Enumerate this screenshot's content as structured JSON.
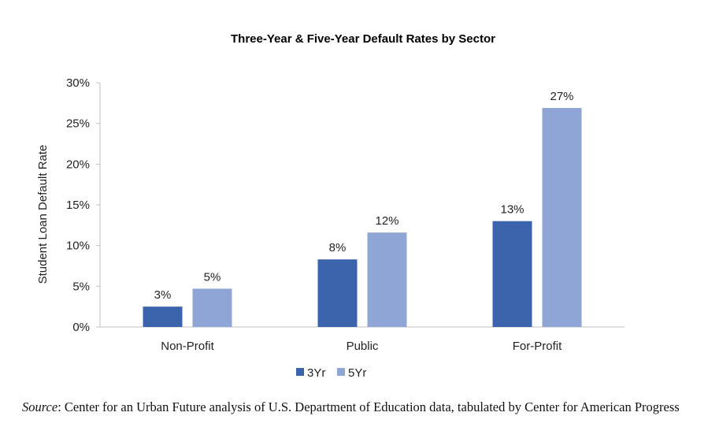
{
  "chart_data": {
    "type": "bar",
    "title": "Three-Year & Five-Year Default Rates by Sector",
    "ylabel": "Student Loan Default Rate",
    "xlabel": "",
    "categories": [
      "Non-Profit",
      "Public",
      "For-Profit"
    ],
    "ylim": [
      0,
      30
    ],
    "yticks": [
      0,
      5,
      10,
      15,
      20,
      25,
      30
    ],
    "ytick_labels": [
      "0%",
      "5%",
      "10%",
      "15%",
      "20%",
      "25%",
      "30%"
    ],
    "grid": false,
    "legend": "bottom",
    "series": [
      {
        "name": "3Yr",
        "color": "#3B64AD",
        "values": [
          2.5,
          8.3,
          13.0
        ],
        "labels": [
          "3%",
          "8%",
          "13%"
        ]
      },
      {
        "name": "5Yr",
        "color": "#8FA5D5",
        "values": [
          4.7,
          11.6,
          26.9
        ],
        "labels": [
          "5%",
          "12%",
          "27%"
        ]
      }
    ]
  },
  "source": {
    "label": "Source",
    "text": ": Center for an Urban Future analysis of U.S. Department of Education data, tabulated by Center for American Progress"
  }
}
